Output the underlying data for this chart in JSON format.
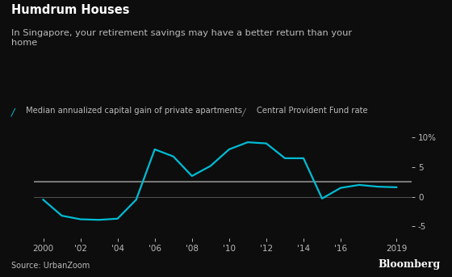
{
  "title": "Humdrum Houses",
  "subtitle": "In Singapore, your retirement savings may have a better return than your\nhome",
  "legend_line1": "Median annualized capital gain of private apartments",
  "legend_line2": "Central Provident Fund rate",
  "source": "Source: UrbanZoom",
  "bloomberg": "Bloomberg",
  "bg_color": "#0d0d0d",
  "text_color": "#bbbbbb",
  "line1_color": "#00bcd4",
  "line2_color": "#777777",
  "zero_line_color": "#555555",
  "years": [
    2000,
    2001,
    2002,
    2003,
    2004,
    2005,
    2006,
    2007,
    2008,
    2009,
    2010,
    2011,
    2012,
    2013,
    2014,
    2015,
    2016,
    2017,
    2018,
    2019
  ],
  "apartment_gains": [
    -0.5,
    -3.2,
    -3.8,
    -3.9,
    -3.7,
    -0.5,
    8.0,
    6.8,
    3.5,
    5.2,
    8.0,
    9.2,
    9.0,
    6.5,
    6.5,
    -0.3,
    1.5,
    2.0,
    1.7,
    1.6
  ],
  "cpf_rate": 2.5,
  "ylim": [
    -7,
    11
  ],
  "yticks": [
    -5,
    0,
    5,
    10
  ],
  "ytick_labels": [
    "-5",
    "0",
    "5",
    "10%"
  ]
}
